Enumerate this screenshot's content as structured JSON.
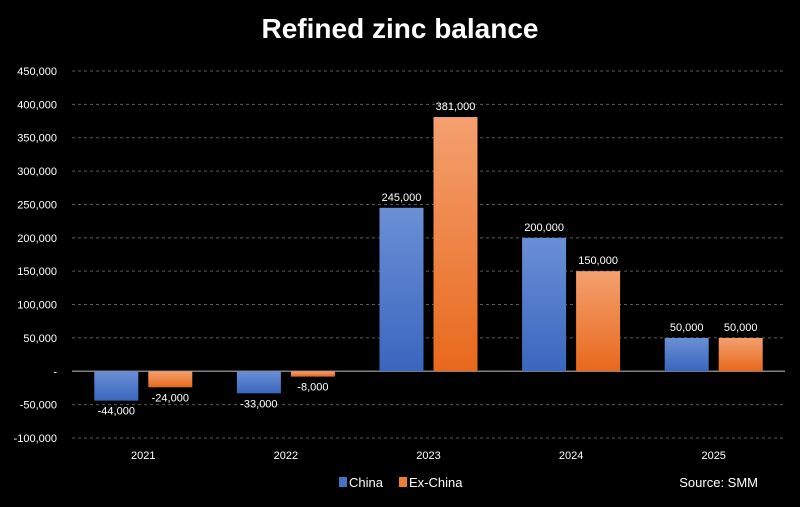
{
  "chart_data": {
    "type": "bar",
    "title": "Refined zinc balance",
    "categories": [
      "2021",
      "2022",
      "2023",
      "2024",
      "2025"
    ],
    "series": [
      {
        "name": "China",
        "values": [
          -44000,
          -33000,
          245000,
          200000,
          50000
        ],
        "labels": [
          "-44,000",
          "-33,000",
          "245,000",
          "200,000",
          "50,000"
        ],
        "color": "#4472C4"
      },
      {
        "name": "Ex-China",
        "values": [
          -24000,
          -8000,
          381000,
          150000,
          50000
        ],
        "labels": [
          "-24,000",
          "-8,000",
          "381,000",
          "150,000",
          "50,000"
        ],
        "color": "#ED7D31"
      }
    ],
    "ylim": [
      -100000,
      450000
    ],
    "yticks": [
      450000,
      400000,
      350000,
      300000,
      250000,
      200000,
      150000,
      100000,
      50000,
      0,
      -50000,
      -100000
    ],
    "ytick_labels": [
      "450,000",
      "400,000",
      "350,000",
      "300,000",
      "250,000",
      "200,000",
      "150,000",
      "100,000",
      "50,000",
      "-",
      "-50,000",
      "-100,000"
    ],
    "grid": true,
    "legend": "bottom-center",
    "source": "Source: SMM"
  }
}
